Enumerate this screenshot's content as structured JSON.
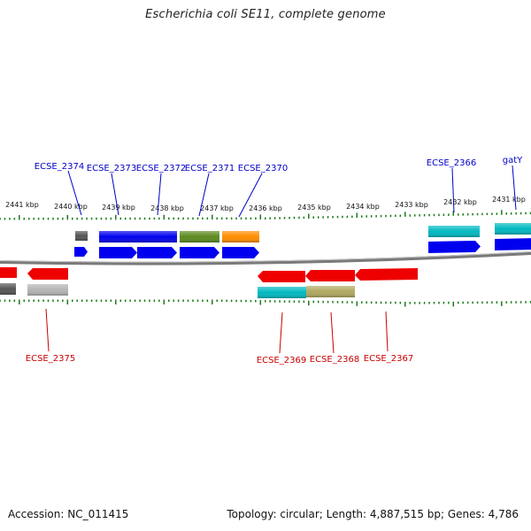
{
  "title": "Escherichia coli SE11, complete genome",
  "footer": {
    "accession": "Accession: NC_011415",
    "topology": "Topology: circular; Length: 4,887,515 bp; Genes: 4,786"
  },
  "colors": {
    "forward_label": "#0000c8",
    "reverse_label": "#c80000",
    "tick": "#1a7a1a",
    "backbone": "#888888"
  },
  "kbp_labels": [
    {
      "text": "2441 kbp"
    },
    {
      "text": "2440 kbp"
    },
    {
      "text": "2439 kbp"
    },
    {
      "text": "2438 kbp"
    },
    {
      "text": "2437 kbp"
    },
    {
      "text": "2436 kbp"
    },
    {
      "text": "2435 kbp"
    },
    {
      "text": "2434 kbp"
    },
    {
      "text": "2433 kbp"
    },
    {
      "text": "2432 kbp"
    },
    {
      "text": "2431 kbp"
    }
  ],
  "forward_genes": [
    {
      "label": "ECSE_2374",
      "color": "#555555"
    },
    {
      "label": "ECSE_2373",
      "color": "#0000ee"
    },
    {
      "label": "ECSE_2372",
      "color": "#0000ee"
    },
    {
      "label": "ECSE_2371",
      "color": "#5c8a1e"
    },
    {
      "label": "ECSE_2370",
      "color": "#ff8c00"
    },
    {
      "label": "ECSE_2366",
      "color": "#00b8c0"
    },
    {
      "label": "gatY",
      "color": "#00b8c0"
    }
  ],
  "reverse_genes": [
    {
      "label": "ECSE_2375",
      "color": "#ee0000"
    },
    {
      "label": "ECSE_2369",
      "color": "#ee0000"
    },
    {
      "label": "ECSE_2368",
      "color": "#ee0000"
    },
    {
      "label": "ECSE_2367",
      "color": "#ee0000"
    }
  ]
}
